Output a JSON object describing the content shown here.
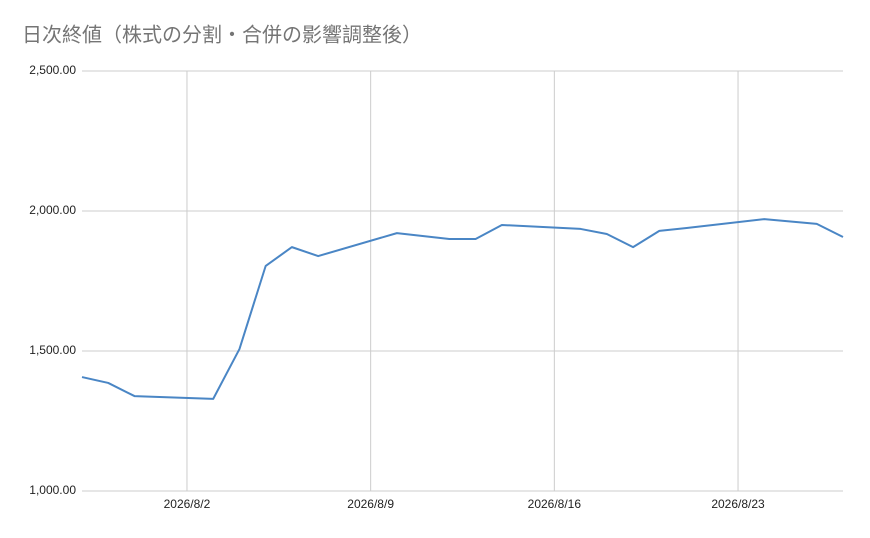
{
  "chart_data": {
    "type": "line",
    "title": "日次終値（株式の分割・合併の影響調整後）",
    "x": [
      "2026-07-29",
      "2026-07-30",
      "2026-07-31",
      "2026-08-03",
      "2026-08-04",
      "2026-08-05",
      "2026-08-06",
      "2026-08-07",
      "2026-08-10",
      "2026-08-12",
      "2026-08-13",
      "2026-08-14",
      "2026-08-17",
      "2026-08-18",
      "2026-08-19",
      "2026-08-20",
      "2026-08-21",
      "2026-08-24",
      "2026-08-26",
      "2026-08-27"
    ],
    "series": [
      {
        "name": "終値",
        "color": "#4a86c5",
        "values": [
          1407,
          1386,
          1339,
          1329,
          1507,
          1804,
          1871,
          1839,
          1921,
          1900,
          1900,
          1950,
          1936,
          1918,
          1871,
          1929,
          1939,
          1971,
          1954,
          1907
        ]
      }
    ],
    "xlim": [
      "2026-07-29",
      "2026-08-27"
    ],
    "xticks": [
      {
        "value": "2026-08-02",
        "label": "2026/8/2"
      },
      {
        "value": "2026-08-09",
        "label": "2026/8/9"
      },
      {
        "value": "2026-08-16",
        "label": "2026/8/16"
      },
      {
        "value": "2026-08-23",
        "label": "2026/8/23"
      }
    ],
    "ylim": [
      1000,
      2500
    ],
    "yticks": [
      {
        "value": 1000,
        "label": "1,000.00"
      },
      {
        "value": 1500,
        "label": "1,500.00"
      },
      {
        "value": 2000,
        "label": "2,000.00"
      },
      {
        "value": 2500,
        "label": "2,500.00"
      }
    ],
    "grid": true
  }
}
